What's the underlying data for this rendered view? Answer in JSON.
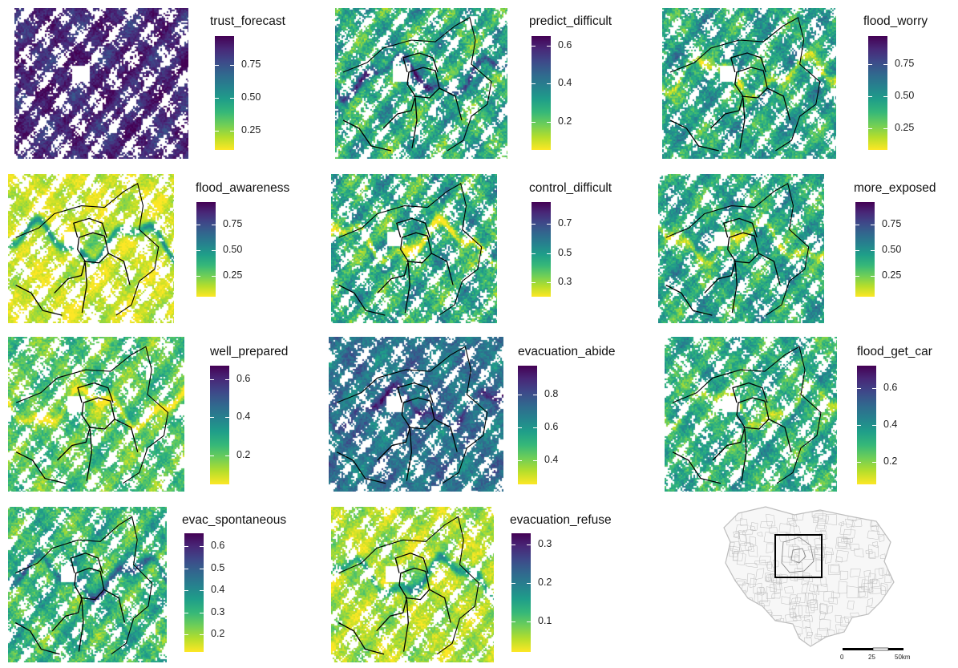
{
  "colors": {
    "viridis": [
      "#fde725",
      "#b5de2b",
      "#6ece58",
      "#35b779",
      "#1f9e89",
      "#26828e",
      "#31688e",
      "#3e4989",
      "#482878",
      "#440154"
    ],
    "boundary": "#000000",
    "inset_line": "#bdbdbd"
  },
  "panels": [
    {
      "id": "trust_forecast",
      "title": "trust_forecast",
      "range": [
        0.1,
        0.97
      ],
      "ticks": [
        0.25,
        0.5,
        0.75
      ],
      "tick_labels": [
        "0.25",
        "0.50",
        "0.75"
      ],
      "mean": 0.87,
      "spread": 0.12,
      "density": 0.78,
      "rivers": 0.1,
      "borders": false
    },
    {
      "id": "predict_difficult",
      "title": "predict_difficult",
      "range": [
        0.05,
        0.65
      ],
      "ticks": [
        0.2,
        0.4,
        0.6
      ],
      "tick_labels": [
        "0.2",
        "0.4",
        "0.6"
      ],
      "mean": 0.28,
      "spread": 0.16,
      "density": 0.7,
      "rivers": 0.45,
      "borders": true
    },
    {
      "id": "flood_worry",
      "title": "flood_worry",
      "range": [
        0.08,
        0.97
      ],
      "ticks": [
        0.25,
        0.5,
        0.75
      ],
      "tick_labels": [
        "0.25",
        "0.50",
        "0.75"
      ],
      "mean": 0.45,
      "spread": 0.22,
      "density": 0.65,
      "rivers": -0.5,
      "borders": true
    },
    {
      "id": "flood_awareness",
      "title": "flood_awareness",
      "range": [
        0.05,
        0.97
      ],
      "ticks": [
        0.25,
        0.5,
        0.75
      ],
      "tick_labels": [
        "0.25",
        "0.50",
        "0.75"
      ],
      "mean": 0.12,
      "spread": 0.12,
      "density": 0.82,
      "rivers": 0.75,
      "borders": true
    },
    {
      "id": "control_difficult",
      "title": "control_difficult",
      "range": [
        0.2,
        0.85
      ],
      "ticks": [
        0.3,
        0.5,
        0.7
      ],
      "tick_labels": [
        "0.3",
        "0.5",
        "0.7"
      ],
      "mean": 0.45,
      "spread": 0.18,
      "density": 0.68,
      "rivers": -0.45,
      "borders": true
    },
    {
      "id": "more_exposed",
      "title": "more_exposed",
      "range": [
        0.05,
        0.97
      ],
      "ticks": [
        0.25,
        0.5,
        0.75
      ],
      "tick_labels": [
        "0.25",
        "0.50",
        "0.75"
      ],
      "mean": 0.42,
      "spread": 0.22,
      "density": 0.66,
      "rivers": -0.5,
      "borders": true
    },
    {
      "id": "well_prepared",
      "title": "well_prepared",
      "range": [
        0.05,
        0.67
      ],
      "ticks": [
        0.2,
        0.4,
        0.6
      ],
      "tick_labels": [
        "0.2",
        "0.4",
        "0.6"
      ],
      "mean": 0.22,
      "spread": 0.12,
      "density": 0.74,
      "rivers": -0.35,
      "borders": true
    },
    {
      "id": "evacuation_abide",
      "title": "evacuation_abide",
      "range": [
        0.25,
        0.98
      ],
      "ticks": [
        0.4,
        0.6,
        0.8
      ],
      "tick_labels": [
        "0.4",
        "0.6",
        "0.8"
      ],
      "mean": 0.7,
      "spread": 0.13,
      "density": 0.7,
      "rivers": 0.3,
      "borders": true
    },
    {
      "id": "flood_get_car",
      "title": "flood_get_car",
      "range": [
        0.08,
        0.72
      ],
      "ticks": [
        0.2,
        0.4,
        0.6
      ],
      "tick_labels": [
        "0.2",
        "0.4",
        "0.6"
      ],
      "mean": 0.32,
      "spread": 0.14,
      "density": 0.72,
      "rivers": -0.3,
      "borders": true
    },
    {
      "id": "evac_spontaneous",
      "title": "evac_spontaneous",
      "range": [
        0.12,
        0.66
      ],
      "ticks": [
        0.2,
        0.3,
        0.4,
        0.5,
        0.6
      ],
      "tick_labels": [
        "0.2",
        "0.3",
        "0.4",
        "0.5",
        "0.6"
      ],
      "mean": 0.3,
      "spread": 0.12,
      "density": 0.66,
      "rivers": 0.35,
      "borders": true
    },
    {
      "id": "evacuation_refuse",
      "title": "evacuation_refuse",
      "range": [
        0.02,
        0.33
      ],
      "ticks": [
        0.1,
        0.2,
        0.3
      ],
      "tick_labels": [
        "0.1",
        "0.2",
        "0.3"
      ],
      "mean": 0.06,
      "spread": 0.05,
      "density": 0.7,
      "rivers": 0.2,
      "borders": true
    }
  ],
  "inset": {
    "scalebar": {
      "labels": [
        "0",
        "25",
        "50km"
      ]
    }
  }
}
